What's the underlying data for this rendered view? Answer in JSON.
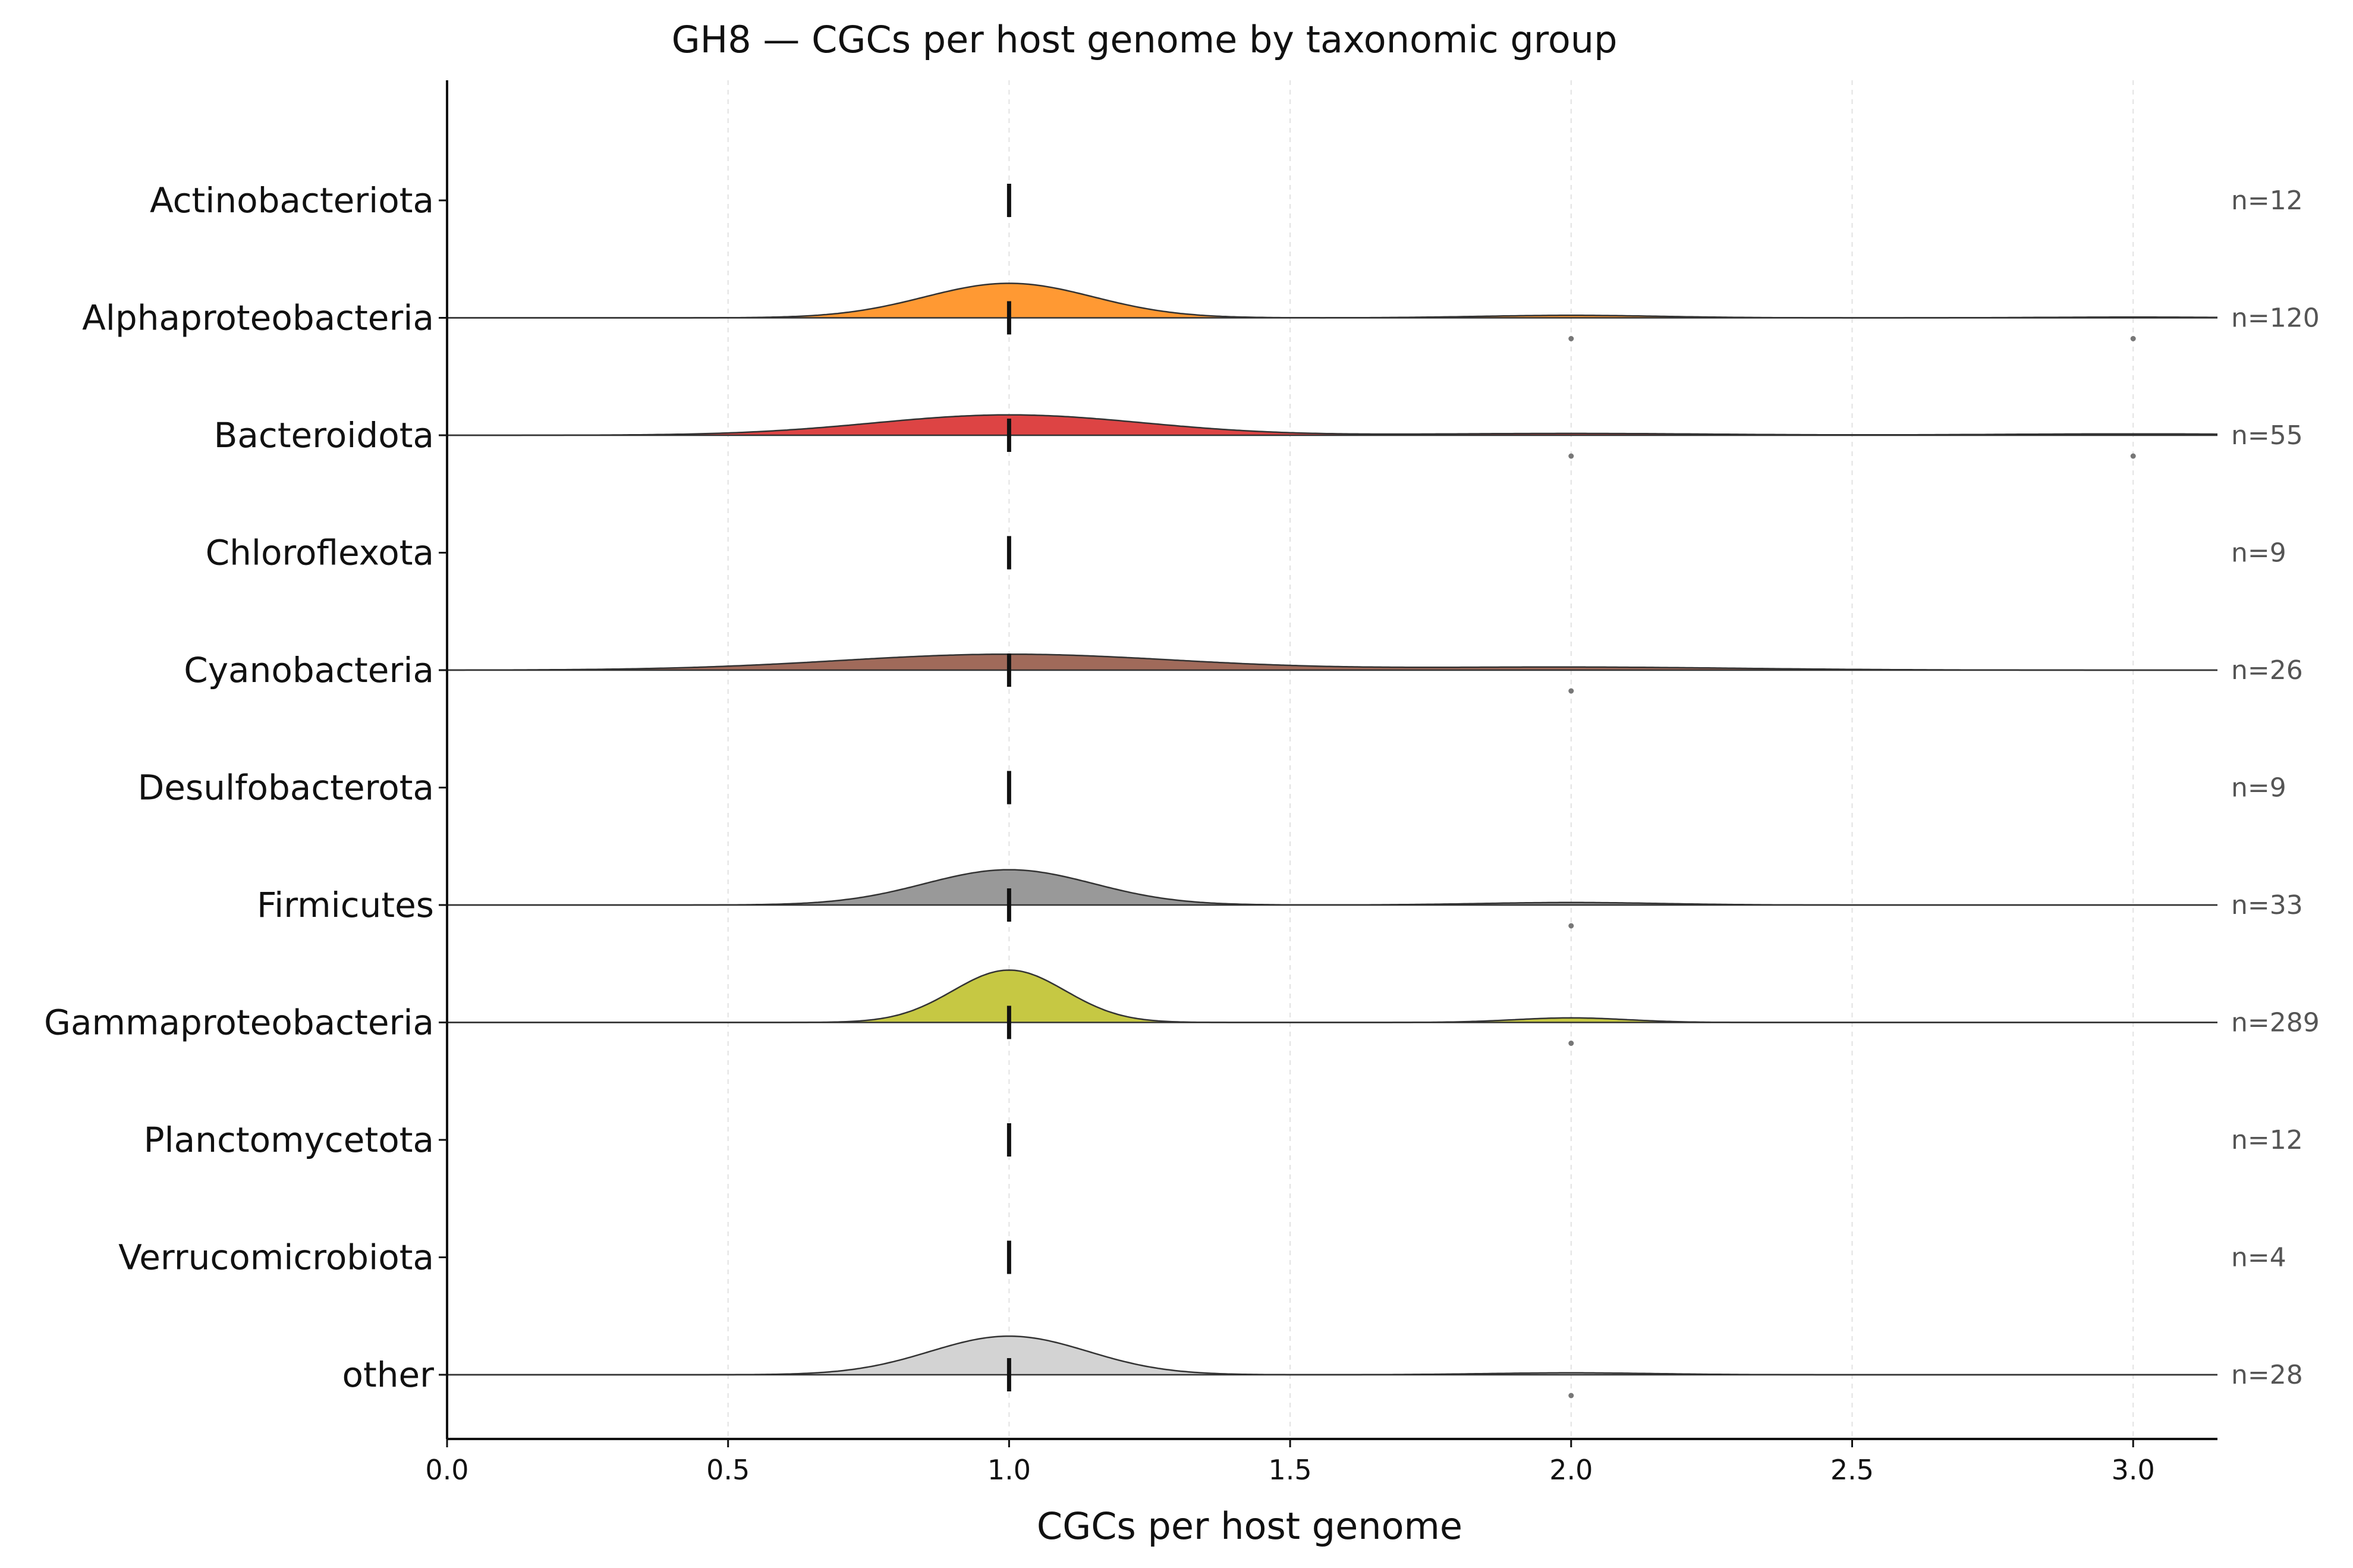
{
  "chart_data": {
    "type": "ridgeline",
    "title": "GH8 — CGCs per host genome by taxonomic group",
    "xlabel": "CGCs per host genome",
    "ylabel": "",
    "xlim": [
      0.0,
      3.15
    ],
    "xticks": [
      0.0,
      0.5,
      1.0,
      1.5,
      2.0,
      2.5,
      3.0
    ],
    "xtick_labels": [
      "0.0",
      "0.5",
      "1.0",
      "1.5",
      "2.0",
      "2.5",
      "3.0"
    ],
    "grid": "vertical dashed",
    "median_marker": "vertical dash at median",
    "groups": [
      {
        "name": "Actinobacteriota",
        "n_label": "n=12",
        "color": null,
        "median": 1.0,
        "density": null,
        "outliers": []
      },
      {
        "name": "Alphaproteobacteria",
        "n_label": "n=120",
        "color": "#ff9933",
        "median": 1.0,
        "density": [
          {
            "mean": 1.0,
            "sd": 0.15,
            "weight": 0.91
          },
          {
            "mean": 2.0,
            "sd": 0.16,
            "weight": 0.07
          },
          {
            "mean": 3.0,
            "sd": 0.16,
            "weight": 0.02
          }
        ],
        "outliers": [
          2.0,
          3.0
        ]
      },
      {
        "name": "Bacteroidota",
        "n_label": "n=55",
        "color": "#dd4444",
        "median": 1.0,
        "density": [
          {
            "mean": 1.0,
            "sd": 0.24,
            "weight": 0.86
          },
          {
            "mean": 2.0,
            "sd": 0.25,
            "weight": 0.08
          },
          {
            "mean": 3.0,
            "sd": 0.25,
            "weight": 0.06
          }
        ],
        "outliers": [
          2.0,
          3.0
        ]
      },
      {
        "name": "Chloroflexota",
        "n_label": "n=9",
        "color": null,
        "median": 1.0,
        "density": null,
        "outliers": []
      },
      {
        "name": "Cyanobacteria",
        "n_label": "n=26",
        "color": "#a06a5a",
        "median": 1.0,
        "density": [
          {
            "mean": 1.0,
            "sd": 0.3,
            "weight": 0.84
          },
          {
            "mean": 2.0,
            "sd": 0.3,
            "weight": 0.16
          }
        ],
        "outliers": [
          2.0
        ]
      },
      {
        "name": "Desulfobacterota",
        "n_label": "n=9",
        "color": null,
        "median": 1.0,
        "density": null,
        "outliers": []
      },
      {
        "name": "Firmicutes",
        "n_label": "n=33",
        "color": "#999999",
        "median": 1.0,
        "density": [
          {
            "mean": 1.0,
            "sd": 0.15,
            "weight": 0.93
          },
          {
            "mean": 2.0,
            "sd": 0.16,
            "weight": 0.07
          }
        ],
        "outliers": [
          2.0
        ]
      },
      {
        "name": "Gammaproteobacteria",
        "n_label": "n=289",
        "color": "#c6c843",
        "median": 1.0,
        "density": [
          {
            "mean": 1.0,
            "sd": 0.1,
            "weight": 0.92
          },
          {
            "mean": 2.0,
            "sd": 0.1,
            "weight": 0.08
          }
        ],
        "outliers": [
          2.0
        ]
      },
      {
        "name": "Planctomycetota",
        "n_label": "n=12",
        "color": null,
        "median": 1.0,
        "density": null,
        "outliers": []
      },
      {
        "name": "Verrucomicrobiota",
        "n_label": "n=4",
        "color": null,
        "median": 1.0,
        "density": null,
        "outliers": []
      },
      {
        "name": "other",
        "n_label": "n=28",
        "color": "#d3d3d3",
        "median": 1.0,
        "density": [
          {
            "mean": 1.0,
            "sd": 0.14,
            "weight": 0.95
          },
          {
            "mean": 2.0,
            "sd": 0.15,
            "weight": 0.05
          }
        ],
        "outliers": [
          2.0
        ]
      }
    ]
  }
}
